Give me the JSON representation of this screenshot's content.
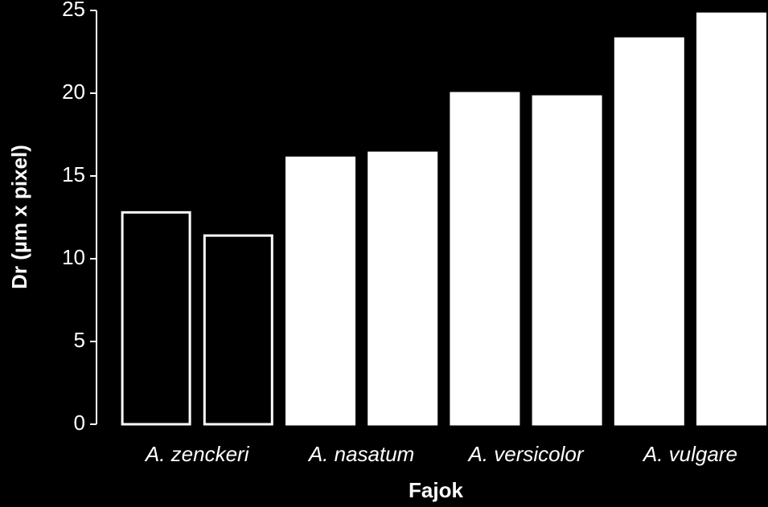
{
  "chart_data": {
    "type": "bar",
    "x_label": "Fajok",
    "y_label": "Dr (µm x pixel)",
    "categories": [
      "A. zenckeri",
      null,
      "A. nasatum",
      null,
      "A. versicolor",
      null,
      "A. vulgare",
      null
    ],
    "values": [
      12.8,
      11.4,
      16.1,
      16.4,
      20.0,
      19.8,
      23.3,
      24.8
    ],
    "colors": [
      "#000000",
      "#000000",
      "#ffffff",
      "#ffffff",
      "#ffffff",
      "#ffffff",
      "#ffffff",
      "#ffffff"
    ],
    "edge_color": "#ffffff",
    "ylim": [
      0,
      25
    ],
    "yticks": [
      0,
      5,
      10,
      15,
      20,
      25
    ]
  }
}
